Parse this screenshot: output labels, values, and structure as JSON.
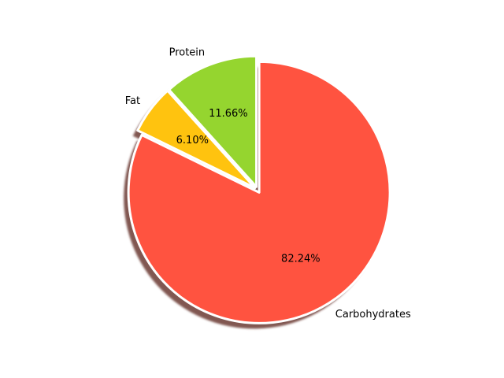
{
  "chart_data": {
    "type": "pie",
    "title": "",
    "labels": [
      "Carbohydrates",
      "Fat",
      "Protein"
    ],
    "values": [
      82.24,
      6.1,
      11.66
    ],
    "percent_labels": [
      "82.24%",
      "6.10%",
      "11.66%"
    ],
    "colors": [
      "#FF5340",
      "#FFC30F",
      "#95D52F"
    ],
    "start_angle_deg": 90,
    "direction": "clockwise",
    "exploded": true,
    "shadow": true,
    "slice_edge_color": "#ffffff",
    "legend": "none"
  }
}
